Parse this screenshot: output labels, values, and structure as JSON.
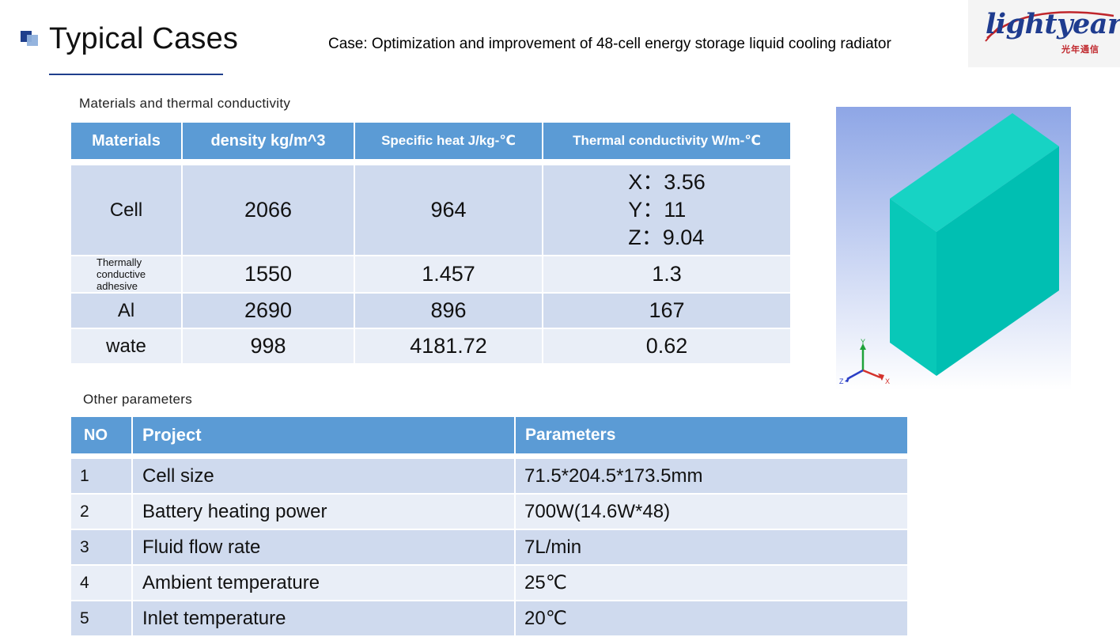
{
  "header": {
    "title": "Typical Cases",
    "case_title": "Case: Optimization and improvement of 48-cell energy storage liquid cooling radiator"
  },
  "logo": {
    "main_text": "lightyear",
    "sub_text": "光年通信"
  },
  "materials_section": {
    "label": "Materials and thermal conductivity",
    "headers": {
      "materials": "Materials",
      "density": "density kg/m^3",
      "specific_heat": "Specific heat J/kg-℃",
      "conductivity": "Thermal conductivity W/m-℃"
    },
    "rows": [
      {
        "material": "Cell",
        "density": "2066",
        "specific_heat": "964",
        "conductivity_x": "X：3.56",
        "conductivity_y": "Y：11",
        "conductivity_z": "Z：9.04"
      },
      {
        "material": "Thermally conductive adhesive",
        "density": "1550",
        "specific_heat": "1.457",
        "conductivity": "1.3"
      },
      {
        "material": "Al",
        "density": "2690",
        "specific_heat": "896",
        "conductivity": "167"
      },
      {
        "material": "wate",
        "density": "998",
        "specific_heat": "4181.72",
        "conductivity": "0.62"
      }
    ]
  },
  "parameters_section": {
    "label": "Other parameters",
    "headers": {
      "no": "NO",
      "project": "Project",
      "parameters": "Parameters"
    },
    "rows": [
      {
        "no": "1",
        "project": "Cell size",
        "value": "71.5*204.5*173.5mm"
      },
      {
        "no": "2",
        "project": "Battery heating power",
        "value": "700W(14.6W*48)"
      },
      {
        "no": "3",
        "project": "Fluid flow rate",
        "value": "7L/min"
      },
      {
        "no": "4",
        "project": "Ambient temperature",
        "value": "25℃"
      },
      {
        "no": "5",
        "project": "Inlet temperature",
        "value": "20℃"
      }
    ]
  },
  "model_view": {
    "axis_x": "X",
    "axis_y": "Y",
    "axis_z": "Z",
    "block_color": "#00c1b3",
    "background_top": "#8ea6e6",
    "background_bottom": "#ffffff"
  },
  "colors": {
    "header_blue": "#5b9bd5",
    "row_dark": "#cfdaee",
    "row_light": "#e9eef7",
    "accent_navy": "#1f3f8c"
  }
}
